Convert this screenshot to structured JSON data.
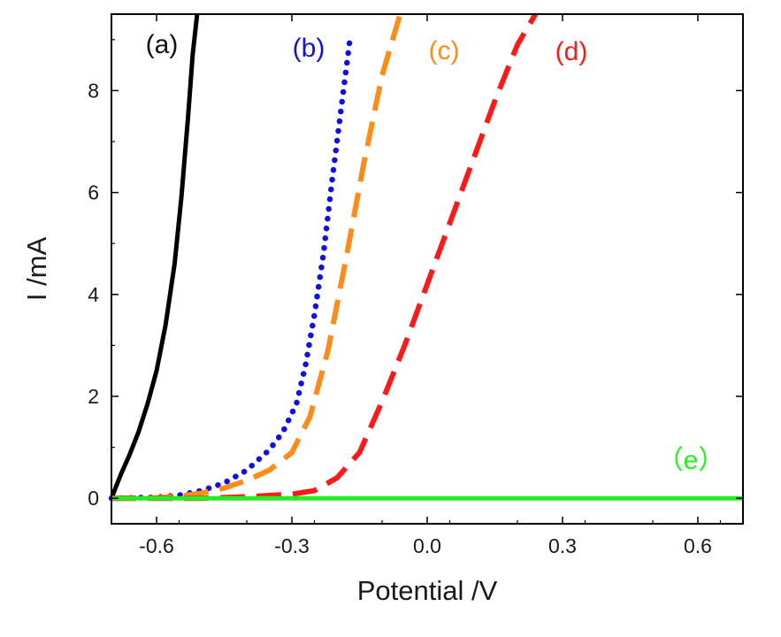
{
  "chart_data": {
    "type": "line",
    "title": "",
    "xlabel": "Potential /V",
    "ylabel": "I /mA",
    "xlim": [
      -0.7,
      0.7
    ],
    "ylim": [
      -0.5,
      9.5
    ],
    "xticks": [
      -0.6,
      -0.3,
      0.0,
      0.3,
      0.6
    ],
    "xtick_labels": [
      "-0.6",
      "-0.3",
      "0.0",
      "0.3",
      "0.6"
    ],
    "yticks": [
      0,
      2,
      4,
      6,
      8
    ],
    "ytick_labels": [
      "0",
      "2",
      "4",
      "6",
      "8"
    ],
    "grid": false,
    "legend": "inline labels",
    "series": [
      {
        "name": "(a)",
        "color": "#000000",
        "style": "solid",
        "x": [
          -0.7,
          -0.68,
          -0.66,
          -0.64,
          -0.62,
          -0.6,
          -0.58,
          -0.56,
          -0.545,
          -0.53,
          -0.52,
          -0.51
        ],
        "y": [
          0.0,
          0.45,
          0.85,
          1.3,
          1.85,
          2.5,
          3.4,
          4.6,
          5.9,
          7.5,
          8.7,
          9.5
        ]
      },
      {
        "name": "(b)",
        "color": "#1010e0",
        "style": "dotted",
        "x": [
          -0.7,
          -0.6,
          -0.55,
          -0.5,
          -0.45,
          -0.4,
          -0.35,
          -0.32,
          -0.29,
          -0.27,
          -0.25,
          -0.23,
          -0.21,
          -0.19,
          -0.17
        ],
        "y": [
          0.0,
          0.02,
          0.06,
          0.15,
          0.3,
          0.55,
          0.95,
          1.3,
          1.85,
          2.6,
          3.6,
          4.8,
          6.3,
          7.7,
          9.1
        ]
      },
      {
        "name": "(c)",
        "color": "#ff8c1a",
        "style": "dashed",
        "x": [
          -0.7,
          -0.6,
          -0.55,
          -0.5,
          -0.45,
          -0.4,
          -0.35,
          -0.3,
          -0.26,
          -0.22,
          -0.18,
          -0.14,
          -0.1,
          -0.06
        ],
        "y": [
          0.0,
          0.01,
          0.04,
          0.1,
          0.2,
          0.35,
          0.55,
          0.9,
          1.6,
          2.9,
          4.7,
          6.6,
          8.3,
          9.5
        ]
      },
      {
        "name": "(d)",
        "color": "#ff1a1a",
        "style": "dashed",
        "x": [
          -0.7,
          -0.5,
          -0.4,
          -0.3,
          -0.25,
          -0.2,
          -0.15,
          -0.1,
          -0.05,
          0.0,
          0.05,
          0.1,
          0.15,
          0.2,
          0.24
        ],
        "y": [
          0.0,
          0.0,
          0.03,
          0.08,
          0.15,
          0.4,
          0.9,
          1.9,
          3.0,
          4.2,
          5.4,
          6.6,
          7.8,
          8.9,
          9.5
        ]
      },
      {
        "name": "（e）",
        "color": "#22ee22",
        "style": "solid",
        "x": [
          -0.7,
          0.7
        ],
        "y": [
          0.0,
          0.0
        ]
      }
    ]
  }
}
